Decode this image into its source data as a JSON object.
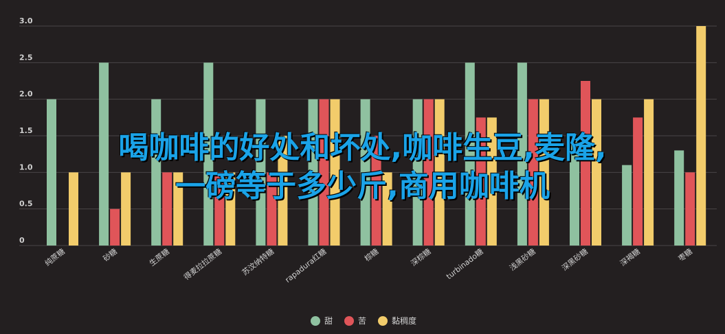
{
  "chart_data": {
    "type": "bar",
    "categories": [
      "纯蔗糖",
      "砂糖",
      "生蔗糖",
      "得麦拉拉蔗糖",
      "苏汶纳特糖",
      "rapadura红糖",
      "棕糖",
      "深棕糖",
      "turbinado糖",
      "浅黑砂糖",
      "深黑砂糖",
      "深褐糖",
      "枣糖"
    ],
    "series": [
      {
        "name": "甜",
        "color": "#8fc1a0",
        "values": [
          2.0,
          2.5,
          2.0,
          2.5,
          2.0,
          2.0,
          2.0,
          2.0,
          2.5,
          2.5,
          1.5,
          1.1,
          1.3
        ]
      },
      {
        "name": "苦",
        "color": "#e05559",
        "values": [
          0,
          0.5,
          1.0,
          1.0,
          1.0,
          2.0,
          1.5,
          2.0,
          1.75,
          2.0,
          2.25,
          1.75,
          1.0
        ]
      },
      {
        "name": "黏稠度",
        "color": "#f2cc6b",
        "values": [
          1.0,
          1.0,
          1.0,
          1.0,
          1.5,
          2.0,
          1.0,
          2.0,
          1.75,
          2.0,
          2.0,
          2.0,
          3.0
        ]
      }
    ],
    "yticks": [
      "0",
      "0.5",
      "1.0",
      "1.5",
      "2.0",
      "2.5",
      "3.0"
    ],
    "ylim": [
      0,
      3.0
    ],
    "legend_position": "bottom",
    "grid": true
  },
  "overlay": {
    "line1": "喝咖啡的好处和坏处,咖啡生豆,麦隆,",
    "line2": "一磅等于多少斤,商用咖啡机"
  },
  "colors": {
    "background": "#231f20",
    "grid": "#4a4647",
    "tick_text": "#d0d0d0",
    "overlay_text": "#1aa3e8"
  }
}
